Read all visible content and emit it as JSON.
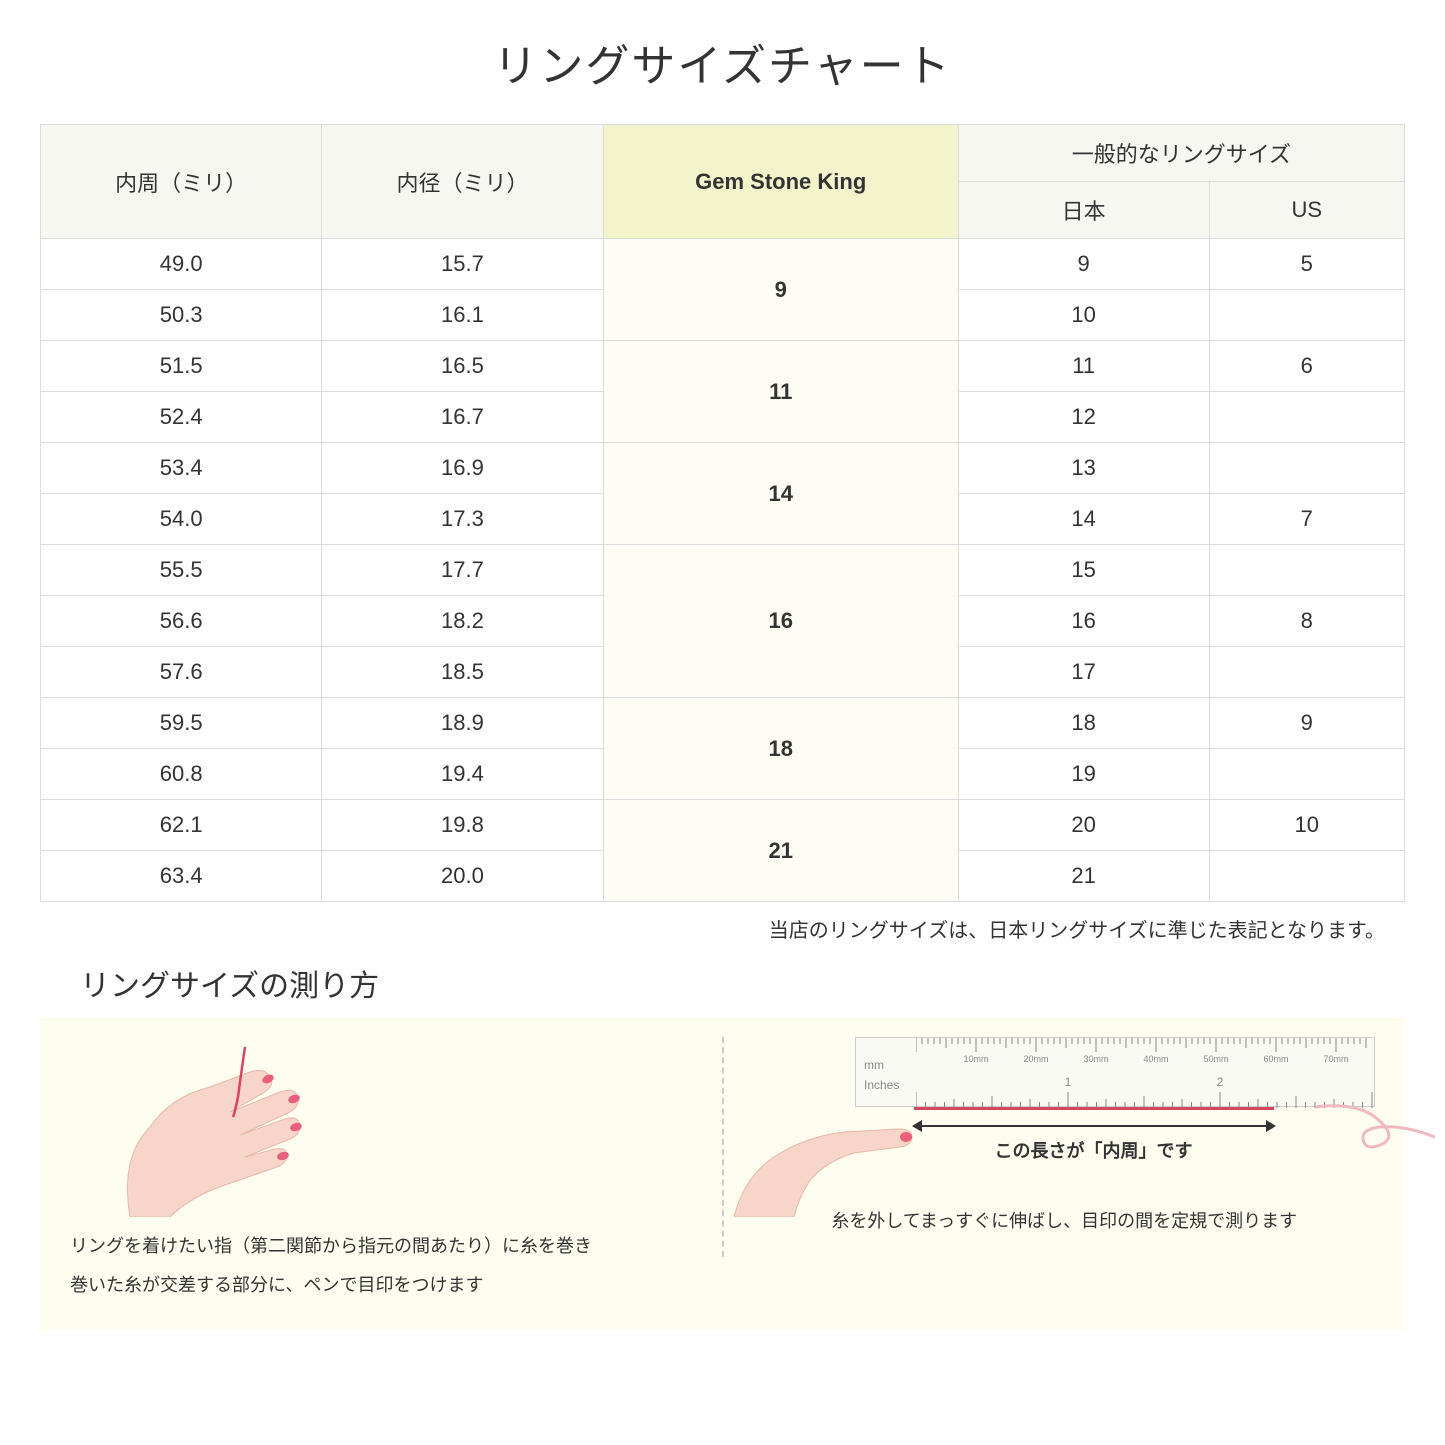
{
  "title": "リングサイズチャート",
  "headers": {
    "circumference": "内周（ミリ）",
    "diameter": "内径（ミリ）",
    "gsk": "Gem Stone King",
    "general": "一般的なリングサイズ",
    "japan": "日本",
    "us": "US"
  },
  "groups": [
    {
      "gsk": "9",
      "rows": [
        {
          "c": "49.0",
          "d": "15.7",
          "jp": "9",
          "us": "5"
        },
        {
          "c": "50.3",
          "d": "16.1",
          "jp": "10",
          "us": ""
        }
      ]
    },
    {
      "gsk": "11",
      "rows": [
        {
          "c": "51.5",
          "d": "16.5",
          "jp": "11",
          "us": "6"
        },
        {
          "c": "52.4",
          "d": "16.7",
          "jp": "12",
          "us": ""
        }
      ]
    },
    {
      "gsk": "14",
      "rows": [
        {
          "c": "53.4",
          "d": "16.9",
          "jp": "13",
          "us": ""
        },
        {
          "c": "54.0",
          "d": "17.3",
          "jp": "14",
          "us": "7"
        }
      ]
    },
    {
      "gsk": "16",
      "rows": [
        {
          "c": "55.5",
          "d": "17.7",
          "jp": "15",
          "us": ""
        },
        {
          "c": "56.6",
          "d": "18.2",
          "jp": "16",
          "us": "8"
        },
        {
          "c": "57.6",
          "d": "18.5",
          "jp": "17",
          "us": ""
        }
      ]
    },
    {
      "gsk": "18",
      "rows": [
        {
          "c": "59.5",
          "d": "18.9",
          "jp": "18",
          "us": "9"
        },
        {
          "c": "60.8",
          "d": "19.4",
          "jp": "19",
          "us": ""
        }
      ]
    },
    {
      "gsk": "21",
      "rows": [
        {
          "c": "62.1",
          "d": "19.8",
          "jp": "20",
          "us": "10"
        },
        {
          "c": "63.4",
          "d": "20.0",
          "jp": "21",
          "us": ""
        }
      ]
    }
  ],
  "note": "当店のリングサイズは、日本リングサイズに準じた表記となります。",
  "subtitle": "リングサイズの測り方",
  "instr_left_line1": "リングを着けたい指（第二関節から指元の間あたり）に糸を巻き",
  "instr_left_line2": "巻いた糸が交差する部分に、ペンで目印をつけます",
  "instr_right_text": "糸を外してまっすぐに伸ばし、目印の間を定規で測ります",
  "arrow_label": "この長さが「内周」です",
  "ruler_mm": "mm",
  "ruler_in": "Inches",
  "ruler_mm_labels": [
    "10mm",
    "20mm",
    "30mm",
    "40mm",
    "50mm",
    "60mm",
    "70mm"
  ],
  "ruler_in_labels": [
    "1",
    "2"
  ],
  "colors": {
    "header_bg": "#f7f7f2",
    "highlight_bg": "#f4f4cc",
    "highlight_cell_bg": "#fdfdf5",
    "border": "#dcdcdc",
    "instr_bg": "#fdfdf0",
    "thread": "#d94560",
    "skin": "#f7d5c8",
    "nail": "#e8607d"
  }
}
